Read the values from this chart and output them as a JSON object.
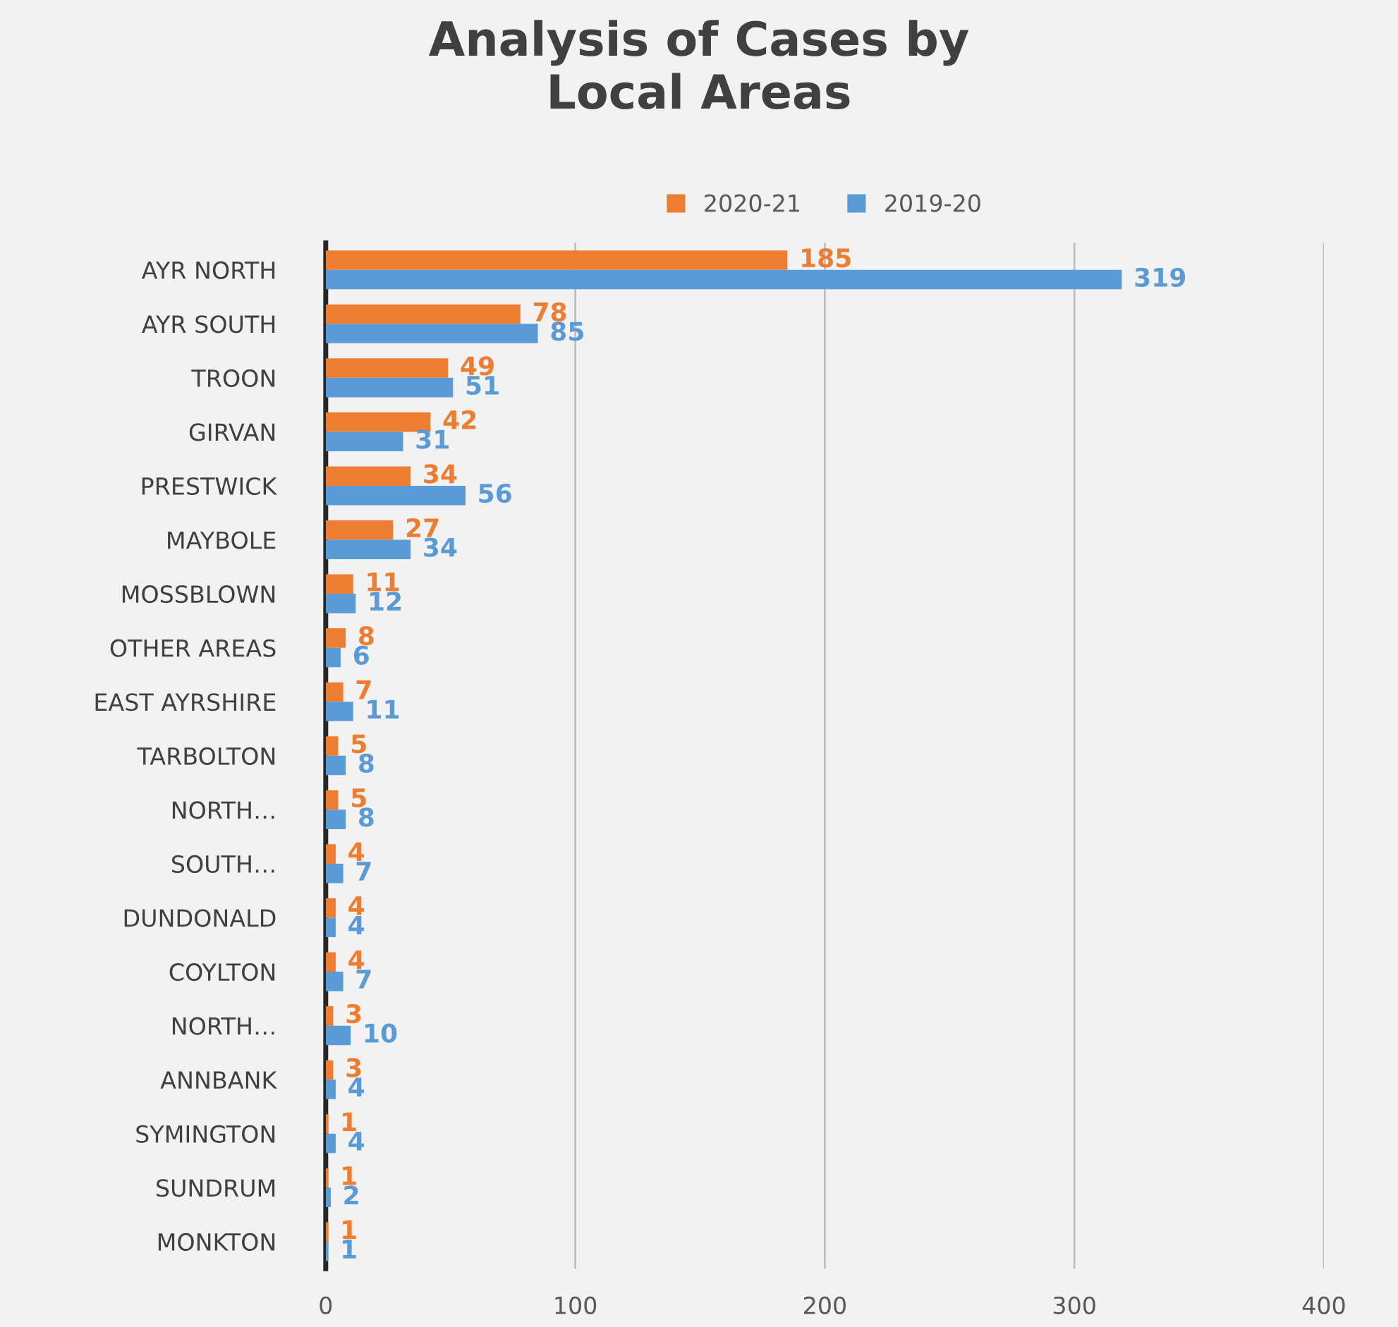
{
  "chart_data": {
    "type": "bar",
    "orientation": "horizontal",
    "title": "Analysis of Cases by\nLocal Areas",
    "categories": [
      "AYR NORTH",
      "AYR SOUTH",
      "TROON",
      "GIRVAN",
      "PRESTWICK",
      "MAYBOLE",
      "MOSSBLOWN",
      "OTHER AREAS",
      "EAST AYRSHIRE",
      "TARBOLTON",
      "NORTH…",
      "SOUTH…",
      "DUNDONALD",
      "COYLTON",
      "NORTH…",
      "ANNBANK",
      "SYMINGTON",
      "SUNDRUM",
      "MONKTON"
    ],
    "series": [
      {
        "name": "2020-21",
        "color": "#ed7d31",
        "values": [
          185,
          78,
          49,
          42,
          34,
          27,
          11,
          8,
          7,
          5,
          5,
          4,
          4,
          4,
          3,
          3,
          1,
          1,
          1
        ]
      },
      {
        "name": "2019-20",
        "color": "#5b9bd5",
        "values": [
          319,
          85,
          51,
          31,
          56,
          34,
          12,
          6,
          11,
          8,
          8,
          7,
          4,
          7,
          10,
          4,
          4,
          2,
          1
        ]
      }
    ],
    "xlim": [
      0,
      400
    ],
    "xticks": [
      0,
      100,
      200,
      300,
      400
    ],
    "grid": "x",
    "legend": "top",
    "data_labels": true
  }
}
